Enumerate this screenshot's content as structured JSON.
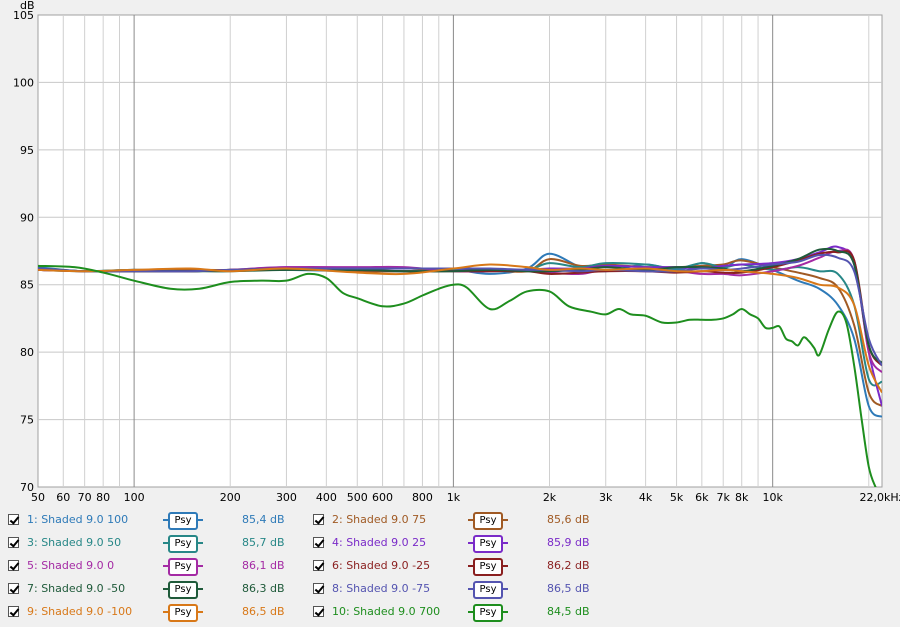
{
  "chart_data": {
    "type": "line",
    "ylabel": "dB",
    "ylim": [
      70,
      105
    ],
    "yticks": [
      70,
      75,
      80,
      85,
      90,
      95,
      100,
      105
    ],
    "xlim": [
      50,
      22000
    ],
    "x_scale": "log",
    "xticks": [
      {
        "v": 50,
        "label": "50"
      },
      {
        "v": 60,
        "label": "60"
      },
      {
        "v": 70,
        "label": "70"
      },
      {
        "v": 80,
        "label": "80"
      },
      {
        "v": 100,
        "label": "100"
      },
      {
        "v": 200,
        "label": "200"
      },
      {
        "v": 300,
        "label": "300"
      },
      {
        "v": 400,
        "label": "400"
      },
      {
        "v": 500,
        "label": "500"
      },
      {
        "v": 600,
        "label": "600"
      },
      {
        "v": 800,
        "label": "800"
      },
      {
        "v": 1000,
        "label": "1k"
      },
      {
        "v": 2000,
        "label": "2k"
      },
      {
        "v": 3000,
        "label": "3k"
      },
      {
        "v": 4000,
        "label": "4k"
      },
      {
        "v": 5000,
        "label": "5k"
      },
      {
        "v": 6000,
        "label": "6k"
      },
      {
        "v": 7000,
        "label": "7k"
      },
      {
        "v": 8000,
        "label": "8k"
      },
      {
        "v": 10000,
        "label": "10k"
      },
      {
        "v": 22000,
        "label": "22,0kHz"
      }
    ],
    "grid": true,
    "series": [
      {
        "name": "1: Shaded 9.0 100",
        "color": "#2e7ab8",
        "value": "85,4 dB",
        "x": [
          50,
          70,
          100,
          150,
          200,
          300,
          500,
          700,
          1000,
          1300,
          1700,
          2000,
          2500,
          3000,
          4000,
          5000,
          6000,
          7000,
          8000,
          10000,
          12000,
          14000,
          16000,
          18000,
          20000,
          22000
        ],
        "y": [
          86.3,
          86.0,
          86.1,
          86.0,
          86.1,
          86.1,
          86.0,
          86.0,
          86.1,
          85.8,
          86.2,
          87.3,
          86.3,
          86.0,
          86.5,
          86.1,
          86.6,
          86.2,
          86.9,
          86.1,
          85.3,
          84.7,
          83.5,
          81.0,
          76.0,
          75.2
        ]
      },
      {
        "name": "2: Shaded 9.0 75",
        "color": "#a05a24",
        "value": "85,6 dB",
        "x": [
          50,
          70,
          100,
          150,
          200,
          300,
          500,
          700,
          1000,
          1300,
          1700,
          2000,
          2500,
          3000,
          4000,
          5000,
          6000,
          7000,
          8000,
          10000,
          12000,
          14000,
          16000,
          18000,
          20000,
          22000
        ],
        "y": [
          86.2,
          86.0,
          86.1,
          86.1,
          86.1,
          86.2,
          86.0,
          86.0,
          86.2,
          86.1,
          86.0,
          86.9,
          86.4,
          86.5,
          86.3,
          86.3,
          86.4,
          86.5,
          86.8,
          86.3,
          85.9,
          85.5,
          84.8,
          82.0,
          77.0,
          76.0
        ]
      },
      {
        "name": "3: Shaded 9.0 50",
        "color": "#278787",
        "value": "85,7 dB",
        "x": [
          50,
          70,
          100,
          150,
          200,
          300,
          500,
          700,
          1000,
          1300,
          1700,
          2000,
          2500,
          3000,
          4000,
          5000,
          6000,
          7000,
          8000,
          10000,
          12000,
          14000,
          16000,
          18000,
          20000,
          22000
        ],
        "y": [
          86.1,
          86.0,
          86.1,
          86.0,
          86.1,
          86.1,
          86.1,
          86.0,
          86.1,
          86.1,
          86.1,
          86.6,
          86.3,
          86.6,
          86.5,
          86.2,
          86.6,
          86.3,
          86.5,
          86.1,
          86.3,
          86.0,
          85.8,
          83.5,
          78.0,
          77.8
        ]
      },
      {
        "name": "4: Shaded 9.0 25",
        "color": "#7a2bc8",
        "value": "85,9 dB",
        "x": [
          50,
          70,
          100,
          150,
          200,
          300,
          500,
          700,
          1000,
          1300,
          1700,
          2000,
          2500,
          3000,
          4000,
          5000,
          6000,
          7000,
          8000,
          10000,
          12000,
          14000,
          16000,
          18000,
          20000,
          22000
        ],
        "y": [
          86.1,
          86.0,
          86.0,
          86.0,
          86.1,
          86.3,
          86.2,
          86.2,
          86.2,
          86.1,
          86.1,
          86.2,
          86.2,
          86.4,
          86.3,
          86.3,
          86.2,
          86.4,
          86.5,
          86.6,
          86.9,
          87.4,
          87.8,
          86.5,
          80.0,
          76.0
        ]
      },
      {
        "name": "5: Shaded 9.0 0",
        "color": "#a42aa4",
        "value": "86,1 dB",
        "x": [
          50,
          70,
          100,
          150,
          200,
          300,
          500,
          700,
          1000,
          1300,
          1700,
          2000,
          2500,
          3000,
          4000,
          5000,
          6000,
          7000,
          8000,
          10000,
          12000,
          14000,
          16000,
          18000,
          20000,
          22000
        ],
        "y": [
          86.1,
          86.0,
          86.0,
          86.0,
          86.1,
          86.3,
          86.3,
          86.3,
          86.0,
          86.0,
          86.1,
          85.9,
          85.8,
          86.1,
          86.0,
          86.0,
          85.8,
          85.8,
          85.7,
          86.0,
          86.4,
          87.0,
          87.5,
          86.8,
          80.0,
          78.5
        ]
      },
      {
        "name": "6: Shaded 9.0 -25",
        "color": "#8a1f1f",
        "value": "86,2 dB",
        "x": [
          50,
          70,
          100,
          150,
          200,
          300,
          500,
          700,
          1000,
          1300,
          1700,
          2000,
          2500,
          3000,
          4000,
          5000,
          6000,
          7000,
          8000,
          10000,
          12000,
          14000,
          16000,
          18000,
          20000,
          22000
        ],
        "y": [
          86.1,
          86.0,
          86.0,
          86.0,
          86.1,
          86.2,
          86.1,
          86.0,
          86.0,
          86.0,
          86.0,
          85.8,
          85.9,
          86.0,
          86.0,
          85.9,
          86.0,
          85.9,
          85.9,
          86.3,
          86.8,
          87.3,
          87.4,
          86.8,
          80.5,
          79.0
        ]
      },
      {
        "name": "7: Shaded 9.0 -50",
        "color": "#1f5a3a",
        "value": "86,3 dB",
        "x": [
          50,
          70,
          100,
          150,
          200,
          300,
          500,
          700,
          1000,
          1300,
          1700,
          2000,
          2500,
          3000,
          4000,
          5000,
          6000,
          7000,
          8000,
          10000,
          12000,
          14000,
          16000,
          18000,
          20000,
          22000
        ],
        "y": [
          86.2,
          86.0,
          86.0,
          86.0,
          86.0,
          86.1,
          86.1,
          86.0,
          86.0,
          86.1,
          86.0,
          86.0,
          86.1,
          86.3,
          86.1,
          86.3,
          86.3,
          86.2,
          86.0,
          86.4,
          86.9,
          87.6,
          87.5,
          86.5,
          80.5,
          79.2
        ]
      },
      {
        "name": "8: Shaded 9.0 -75",
        "color": "#5454b0",
        "value": "86,5 dB",
        "x": [
          50,
          70,
          100,
          150,
          200,
          300,
          500,
          700,
          1000,
          1300,
          1700,
          2000,
          2500,
          3000,
          4000,
          5000,
          6000,
          7000,
          8000,
          10000,
          12000,
          14000,
          16000,
          18000,
          20000,
          22000
        ],
        "y": [
          86.2,
          86.0,
          86.0,
          86.0,
          86.1,
          86.2,
          86.2,
          86.2,
          86.2,
          86.2,
          86.1,
          86.1,
          86.0,
          86.1,
          86.0,
          86.0,
          86.2,
          86.1,
          86.2,
          86.5,
          86.7,
          87.2,
          87.0,
          86.0,
          81.0,
          79.0
        ]
      },
      {
        "name": "9: Shaded 9.0 -100",
        "color": "#d87818",
        "value": "86,5 dB",
        "x": [
          50,
          70,
          100,
          150,
          200,
          300,
          500,
          700,
          1000,
          1300,
          1700,
          2000,
          2500,
          3000,
          4000,
          5000,
          6000,
          7000,
          8000,
          10000,
          12000,
          14000,
          16000,
          18000,
          20000,
          22000
        ],
        "y": [
          86.1,
          86.0,
          86.1,
          86.2,
          86.0,
          86.2,
          85.9,
          85.8,
          86.2,
          86.5,
          86.3,
          86.1,
          86.2,
          86.1,
          86.2,
          86.0,
          86.0,
          86.1,
          86.0,
          85.8,
          85.5,
          85.0,
          84.8,
          83.5,
          79.0,
          77.0
        ]
      },
      {
        "name": "10: Shaded 9.0 700",
        "color": "#1e8e1e",
        "value": "84,5 dB",
        "x": [
          50,
          65,
          80,
          100,
          130,
          160,
          200,
          250,
          300,
          350,
          400,
          450,
          500,
          600,
          700,
          800,
          900,
          1000,
          1100,
          1300,
          1500,
          1700,
          2000,
          2300,
          2700,
          3000,
          3300,
          3600,
          4000,
          4500,
          5000,
          5500,
          6000,
          6500,
          7000,
          7500,
          8000,
          8500,
          9000,
          9500,
          10000,
          10500,
          11000,
          11500,
          12000,
          12500,
          13000,
          13500,
          14000,
          15000,
          16000,
          17000,
          18000,
          19000,
          20000,
          21000,
          22000
        ],
        "y": [
          86.4,
          86.3,
          85.9,
          85.3,
          84.7,
          84.7,
          85.2,
          85.3,
          85.3,
          85.8,
          85.5,
          84.4,
          84.0,
          83.4,
          83.6,
          84.2,
          84.7,
          85.0,
          84.8,
          83.2,
          83.8,
          84.5,
          84.5,
          83.4,
          83.0,
          82.8,
          83.2,
          82.8,
          82.7,
          82.2,
          82.2,
          82.4,
          82.4,
          82.4,
          82.5,
          82.8,
          83.2,
          82.8,
          82.5,
          81.8,
          81.8,
          81.9,
          81.0,
          80.8,
          80.5,
          81.1,
          80.8,
          80.3,
          79.8,
          81.7,
          83.0,
          82.2,
          79.0,
          75.0,
          71.5,
          70.0,
          69.2
        ]
      }
    ]
  }
}
